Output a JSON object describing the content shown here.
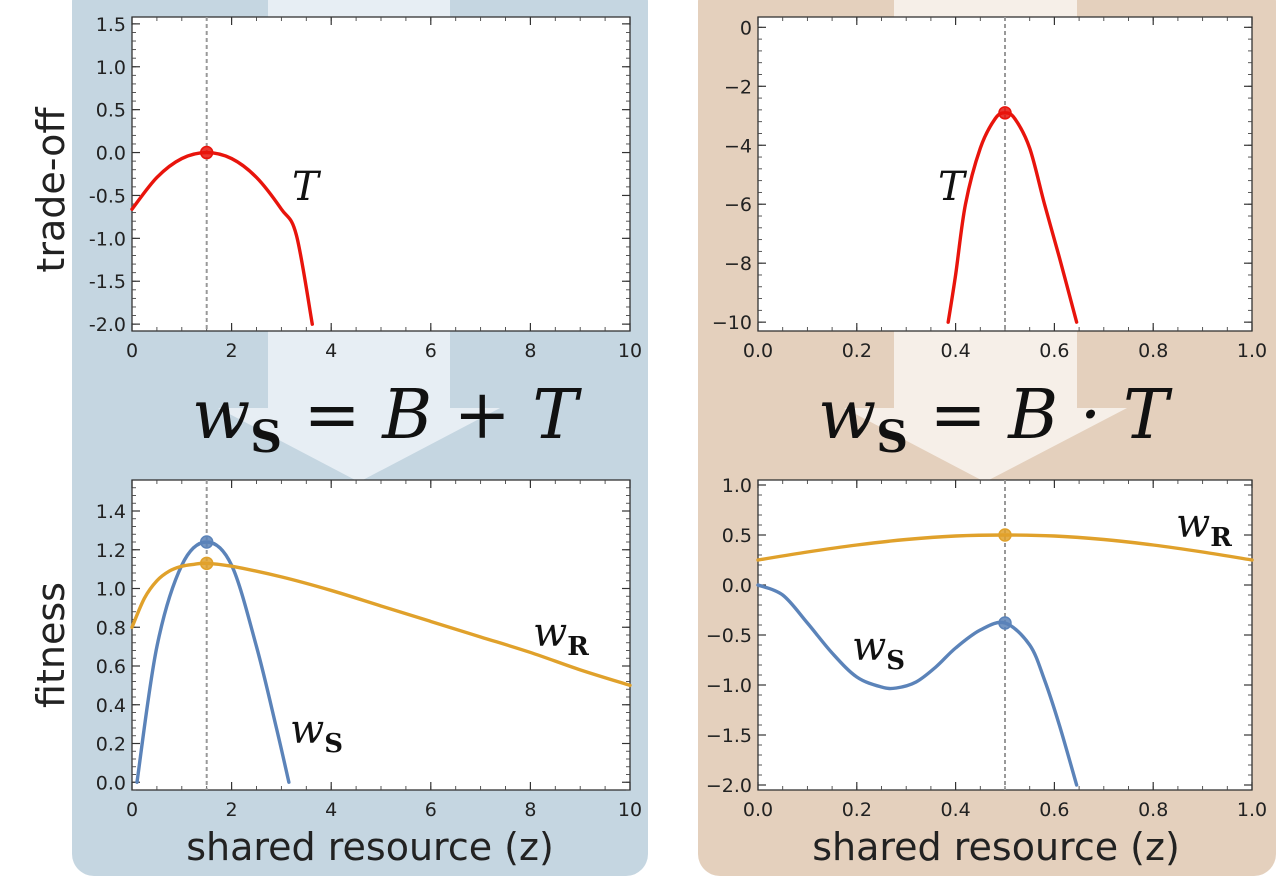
{
  "figure": {
    "colors": {
      "left_panel_bg": "#c5d6e1",
      "left_arrow": "#e7eef4",
      "right_panel_bg": "#e4d0bd",
      "right_arrow": "#f6efe8",
      "trade_off_curve": "#e8140c",
      "w_s_curve": "#5b83b9",
      "w_r_curve": "#e0a12b",
      "guide_line": "#999999"
    },
    "left_equation": {
      "w": "w",
      "sub": "S",
      "rest": " = B + T"
    },
    "right_equation": {
      "w": "w",
      "sub": "S",
      "rest": " = B · T"
    },
    "row_labels": {
      "top": "trade-off",
      "bottom": "fitness"
    },
    "x_axis_title": "shared resource (z)"
  },
  "chart_data": [
    {
      "id": "top-left",
      "type": "line",
      "ylabel": "trade-off",
      "xlim": [
        0,
        10
      ],
      "ylim": [
        -2.08,
        1.58
      ],
      "x_ticks": [
        0,
        2,
        4,
        6,
        8,
        10
      ],
      "x_tick_labels": [
        "0",
        "2",
        "4",
        "6",
        "8",
        "10"
      ],
      "y_ticks": [
        1.5,
        1.0,
        0.5,
        0.0,
        -0.5,
        -1.0,
        -1.5,
        -2.0
      ],
      "y_tick_labels": [
        "1.5",
        "1.0",
        "0.5",
        "0.0",
        "-0.5",
        "-1.0",
        "-1.5",
        "-2.0"
      ],
      "vline_x": 1.5,
      "series": [
        {
          "name": "T",
          "label": "T",
          "color": "#e8140c",
          "x": [
            0,
            0.5,
            1.0,
            1.5,
            2.0,
            2.5,
            3.0,
            3.3,
            3.62
          ],
          "y": [
            -0.66,
            -0.29,
            -0.07,
            0.0,
            -0.07,
            -0.29,
            -0.66,
            -0.96,
            -2.0
          ]
        }
      ],
      "points": [
        {
          "x": 1.5,
          "y": 0.0,
          "color": "#e8140c"
        }
      ]
    },
    {
      "id": "top-right",
      "type": "line",
      "xlim": [
        0.0,
        1.0
      ],
      "ylim": [
        -10.3,
        0.35
      ],
      "x_ticks": [
        0.0,
        0.2,
        0.4,
        0.6,
        0.8,
        1.0
      ],
      "x_tick_labels": [
        "0.0",
        "0.2",
        "0.4",
        "0.6",
        "0.8",
        "1.0"
      ],
      "y_ticks": [
        0,
        -2,
        -4,
        -6,
        -8,
        -10
      ],
      "y_tick_labels": [
        "0",
        "−2",
        "−4",
        "−6",
        "−8",
        "−10"
      ],
      "vline_x": 0.5,
      "series": [
        {
          "name": "T",
          "label": "T",
          "color": "#e8140c",
          "x": [
            0.385,
            0.4,
            0.42,
            0.45,
            0.48,
            0.5,
            0.52,
            0.55,
            0.58,
            0.61,
            0.645
          ],
          "y": [
            -10.0,
            -8.4,
            -6.0,
            -4.1,
            -3.1,
            -2.9,
            -3.1,
            -4.1,
            -6.0,
            -7.8,
            -10.0
          ]
        }
      ],
      "points": [
        {
          "x": 0.5,
          "y": -2.9,
          "color": "#e8140c"
        }
      ]
    },
    {
      "id": "bottom-left",
      "type": "line",
      "ylabel": "fitness",
      "xlabel": "shared resource (z)",
      "xlim": [
        0,
        10
      ],
      "ylim": [
        -0.04,
        1.56
      ],
      "x_ticks": [
        0,
        2,
        4,
        6,
        8,
        10
      ],
      "x_tick_labels": [
        "0",
        "2",
        "4",
        "6",
        "8",
        "10"
      ],
      "y_ticks": [
        1.4,
        1.2,
        1.0,
        0.8,
        0.6,
        0.4,
        0.2,
        0.0
      ],
      "y_tick_labels": [
        "1.4",
        "1.2",
        "1.0",
        "0.8",
        "0.6",
        "0.4",
        "0.2",
        "0.0"
      ],
      "vline_x": 1.5,
      "series": [
        {
          "name": "w_S",
          "label": "w",
          "sub": "S",
          "color": "#5b83b9",
          "x": [
            0.1,
            0.5,
            1.0,
            1.5,
            2.0,
            2.5,
            2.9,
            3.15
          ],
          "y": [
            0.0,
            0.7,
            1.12,
            1.24,
            1.12,
            0.7,
            0.28,
            0.0
          ]
        },
        {
          "name": "w_R",
          "label": "w",
          "sub": "R",
          "color": "#e0a12b",
          "x": [
            0,
            0.25,
            0.5,
            0.75,
            1.0,
            1.25,
            1.5,
            2.0,
            3.0,
            4.0,
            5.0,
            6.0,
            7.0,
            8.0,
            9.0,
            10.0
          ],
          "y": [
            0.8,
            0.95,
            1.04,
            1.09,
            1.115,
            1.125,
            1.13,
            1.115,
            1.06,
            0.99,
            0.91,
            0.83,
            0.75,
            0.67,
            0.58,
            0.5
          ]
        }
      ],
      "points": [
        {
          "x": 1.5,
          "y": 1.24,
          "color": "#5b83b9"
        },
        {
          "x": 1.5,
          "y": 1.13,
          "color": "#e0a12b"
        }
      ]
    },
    {
      "id": "bottom-right",
      "type": "line",
      "xlabel": "shared resource (z)",
      "xlim": [
        0.0,
        1.0
      ],
      "ylim": [
        -2.05,
        1.05
      ],
      "x_ticks": [
        0.0,
        0.2,
        0.4,
        0.6,
        0.8,
        1.0
      ],
      "x_tick_labels": [
        "0.0",
        "0.2",
        "0.4",
        "0.6",
        "0.8",
        "1.0"
      ],
      "y_ticks": [
        1.0,
        0.5,
        0.0,
        -0.5,
        -1.0,
        -1.5,
        -2.0
      ],
      "y_tick_labels": [
        "1.0",
        "0.5",
        "0.0",
        "−0.5",
        "−1.0",
        "−1.5",
        "−2.0"
      ],
      "vline_x": 0.5,
      "series": [
        {
          "name": "w_S",
          "label": "w",
          "sub": "S",
          "color": "#5b83b9",
          "x": [
            0.0,
            0.05,
            0.1,
            0.15,
            0.2,
            0.25,
            0.28,
            0.32,
            0.36,
            0.4,
            0.45,
            0.5,
            0.55,
            0.58,
            0.61,
            0.645
          ],
          "y": [
            0.0,
            -0.1,
            -0.38,
            -0.68,
            -0.92,
            -1.02,
            -1.03,
            -0.97,
            -0.82,
            -0.63,
            -0.45,
            -0.38,
            -0.6,
            -0.95,
            -1.4,
            -2.0
          ]
        },
        {
          "name": "w_R",
          "label": "w",
          "sub": "R",
          "color": "#e0a12b",
          "x": [
            0.0,
            0.1,
            0.2,
            0.3,
            0.4,
            0.5,
            0.6,
            0.7,
            0.8,
            0.9,
            1.0
          ],
          "y": [
            0.25,
            0.33,
            0.4,
            0.455,
            0.49,
            0.5,
            0.49,
            0.455,
            0.4,
            0.33,
            0.25
          ]
        }
      ],
      "points": [
        {
          "x": 0.5,
          "y": -0.38,
          "color": "#5b83b9"
        },
        {
          "x": 0.5,
          "y": 0.5,
          "color": "#e0a12b"
        }
      ]
    }
  ]
}
